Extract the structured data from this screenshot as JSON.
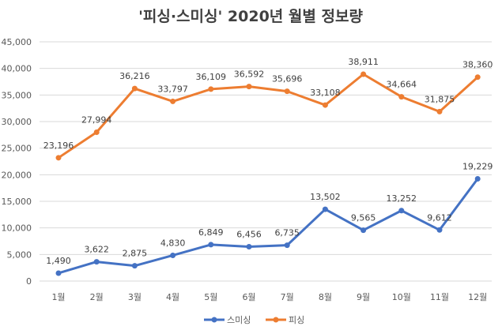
{
  "chart_data": {
    "type": "line",
    "title": "'피싱·스미싱' 2020년 월별 정보량",
    "xlabel": "",
    "ylabel": "",
    "categories": [
      "1월",
      "2월",
      "3월",
      "4월",
      "5월",
      "6월",
      "7월",
      "8월",
      "9월",
      "10월",
      "11월",
      "12월"
    ],
    "ylim": [
      0,
      45000
    ],
    "yticks": [
      "0",
      "5,000",
      "10,000",
      "15,000",
      "20,000",
      "25,000",
      "30,000",
      "35,000",
      "40,000",
      "45,000"
    ],
    "grid": true,
    "legend_position": "bottom",
    "series": [
      {
        "name": "스미싱",
        "color": "#4472C4",
        "values": [
          1490,
          3622,
          2875,
          4830,
          6849,
          6456,
          6735,
          13502,
          9565,
          13252,
          9612,
          19229
        ],
        "labels": [
          "1,490",
          "3,622",
          "2,875",
          "4,830",
          "6,849",
          "6,456",
          "6,735",
          "13,502",
          "9,565",
          "13,252",
          "9,612",
          "19,229"
        ]
      },
      {
        "name": "피싱",
        "color": "#ED7D31",
        "values": [
          23196,
          27994,
          36216,
          33797,
          36109,
          36592,
          35696,
          33108,
          38911,
          34664,
          31875,
          38360
        ],
        "labels": [
          "23,196",
          "27,994",
          "36,216",
          "33,797",
          "36,109",
          "36,592",
          "35,696",
          "33,108",
          "38,911",
          "34,664",
          "31,875",
          "38,360"
        ]
      }
    ]
  }
}
